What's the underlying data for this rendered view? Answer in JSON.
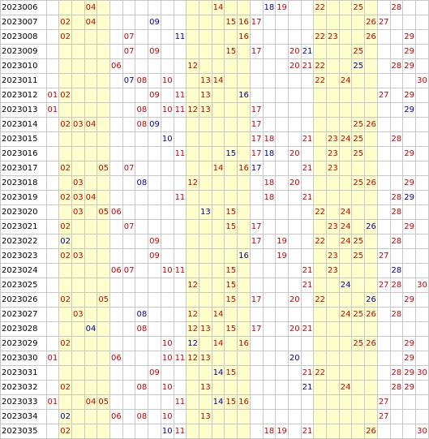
{
  "colors": {
    "red": "#cc0000",
    "blue": "#0000aa",
    "band": "#ffffcc",
    "grid": "#c8c8c8"
  },
  "rows": [
    {
      "period": "2023006",
      "red": [
        "04",
        "14",
        "19",
        "22",
        "25",
        "28"
      ],
      "blue": [
        "18"
      ]
    },
    {
      "period": "2023007",
      "red": [
        "02",
        "04",
        "15",
        "16",
        "17",
        "26",
        "27"
      ],
      "blue": [
        "09"
      ]
    },
    {
      "period": "2023008",
      "red": [
        "02",
        "07",
        "16",
        "22",
        "23",
        "26",
        "29"
      ],
      "blue": [
        "11"
      ]
    },
    {
      "period": "2023009",
      "red": [
        "07",
        "09",
        "15",
        "17",
        "20",
        "25",
        "29"
      ],
      "blue": [
        "21"
      ]
    },
    {
      "period": "2023010",
      "red": [
        "06",
        "12",
        "20",
        "21",
        "22",
        "28",
        "29"
      ],
      "blue": [
        "25"
      ]
    },
    {
      "period": "2023011",
      "red": [
        "08",
        "10",
        "13",
        "14",
        "22",
        "24",
        "30"
      ],
      "blue": [
        "07"
      ]
    },
    {
      "period": "2023012",
      "red": [
        "01",
        "02",
        "09",
        "11",
        "13",
        "27",
        "29"
      ],
      "blue": [
        "16"
      ]
    },
    {
      "period": "2023013",
      "red": [
        "01",
        "08",
        "10",
        "11",
        "12",
        "13",
        "17"
      ],
      "blue": [
        "29"
      ]
    },
    {
      "period": "2023014",
      "red": [
        "02",
        "03",
        "04",
        "08",
        "17",
        "25",
        "26"
      ],
      "blue": [
        "09"
      ]
    },
    {
      "period": "2023015",
      "red": [
        "17",
        "18",
        "21",
        "23",
        "24",
        "25",
        "28"
      ],
      "blue": [
        "10"
      ]
    },
    {
      "period": "2023016",
      "red": [
        "11",
        "17",
        "20",
        "23",
        "25",
        "29"
      ],
      "blue": [
        "15",
        "18"
      ]
    },
    {
      "period": "2023017",
      "red": [
        "02",
        "05",
        "07",
        "14",
        "16",
        "21",
        "23"
      ],
      "blue": [
        "17"
      ]
    },
    {
      "period": "2023018",
      "red": [
        "03",
        "12",
        "18",
        "20",
        "25",
        "26",
        "29"
      ],
      "blue": [
        "08"
      ]
    },
    {
      "period": "2023019",
      "red": [
        "02",
        "03",
        "04",
        "11",
        "18",
        "21",
        "28"
      ],
      "blue": [
        "29"
      ]
    },
    {
      "period": "2023020",
      "red": [
        "03",
        "05",
        "06",
        "15",
        "22",
        "24",
        "28"
      ],
      "blue": [
        "13"
      ]
    },
    {
      "period": "2023021",
      "red": [
        "02",
        "07",
        "15",
        "17",
        "23",
        "24",
        "29"
      ],
      "blue": [
        "26"
      ]
    },
    {
      "period": "2023022",
      "red": [
        "09",
        "17",
        "19",
        "22",
        "24",
        "25",
        "28"
      ],
      "blue": [
        "02"
      ]
    },
    {
      "period": "2023023",
      "red": [
        "02",
        "03",
        "09",
        "19",
        "23",
        "25",
        "27"
      ],
      "blue": [
        "16"
      ]
    },
    {
      "period": "2023024",
      "red": [
        "06",
        "07",
        "10",
        "11",
        "15",
        "21",
        "23"
      ],
      "blue": [
        "28"
      ]
    },
    {
      "period": "2023025",
      "red": [
        "12",
        "15",
        "21",
        "27",
        "28",
        "30"
      ],
      "blue": [
        "24"
      ]
    },
    {
      "period": "2023026",
      "red": [
        "02",
        "05",
        "15",
        "17",
        "20",
        "22",
        "29"
      ],
      "blue": [
        "26"
      ]
    },
    {
      "period": "2023027",
      "red": [
        "03",
        "12",
        "14",
        "24",
        "25",
        "26",
        "28"
      ],
      "blue": [
        "08"
      ]
    },
    {
      "period": "2023028",
      "red": [
        "08",
        "12",
        "13",
        "15",
        "17",
        "20",
        "21"
      ],
      "blue": [
        "04"
      ]
    },
    {
      "period": "2023029",
      "red": [
        "02",
        "10",
        "14",
        "16",
        "25",
        "26",
        "29"
      ],
      "blue": [
        "12"
      ]
    },
    {
      "period": "2023030",
      "red": [
        "01",
        "06",
        "10",
        "11",
        "12",
        "13",
        "29"
      ],
      "blue": [
        "20"
      ]
    },
    {
      "period": "2023031",
      "red": [
        "09",
        "15",
        "21",
        "22",
        "28",
        "29",
        "30"
      ],
      "blue": [
        "14"
      ]
    },
    {
      "period": "2023032",
      "red": [
        "02",
        "08",
        "10",
        "13",
        "24",
        "28",
        "29"
      ],
      "blue": [
        "21"
      ]
    },
    {
      "period": "2023033",
      "red": [
        "01",
        "04",
        "05",
        "11",
        "15",
        "16",
        "27"
      ],
      "blue": [
        "14"
      ]
    },
    {
      "period": "2023034",
      "red": [
        "06",
        "08",
        "10",
        "13",
        "27"
      ],
      "blue": [
        "02"
      ]
    },
    {
      "period": "2023035",
      "red": [
        "02",
        "11",
        "18",
        "19",
        "21",
        "26",
        "30"
      ],
      "blue": [
        "10"
      ]
    }
  ]
}
